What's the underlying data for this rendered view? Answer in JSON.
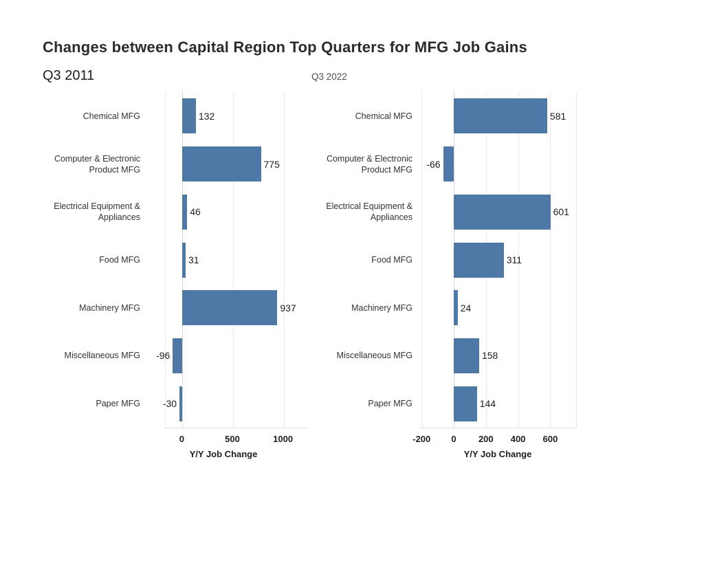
{
  "title": "Changes between Capital Region Top Quarters for MFG Job Gains",
  "colors": {
    "bar": "#4e79a7",
    "gridline": "#e9e9e9",
    "zero_line": "#bdbdbd",
    "axis_line": "#dcdcdc",
    "title_text": "#2b2b2b",
    "value_text": "#1e1e1e",
    "category_text": "#333333"
  },
  "chart_data": [
    {
      "type": "bar",
      "orientation": "horizontal",
      "title": "Q3 2011",
      "xlabel": "Y/Y Job Change",
      "categories": [
        "Chemical MFG",
        "Computer & Electronic Product MFG",
        "Electrical Equipment & Appliances",
        "Food MFG",
        "Machinery MFG",
        "Miscellaneous MFG",
        "Paper MFG"
      ],
      "values": [
        132,
        775,
        46,
        31,
        937,
        -96,
        -30
      ],
      "xlim": [
        -166,
        1247
      ],
      "xticks": [
        0,
        500,
        1000
      ],
      "grid": true,
      "zero_line_style": "dotted",
      "legend": "none",
      "value_labels_shown": true
    },
    {
      "type": "bar",
      "orientation": "horizontal",
      "title": "Q3 2022",
      "xlabel": "Y/Y Job Change",
      "categories": [
        "Chemical MFG",
        "Computer & Electronic Product MFG",
        "Electrical Equipment & Appliances",
        "Food MFG",
        "Machinery MFG",
        "Miscellaneous MFG",
        "Paper MFG"
      ],
      "values": [
        581,
        -66,
        601,
        311,
        24,
        158,
        144
      ],
      "xlim": [
        -214,
        761
      ],
      "xticks": [
        -200,
        0,
        200,
        400,
        600
      ],
      "grid": true,
      "zero_line_style": "dotted",
      "legend": "none",
      "value_labels_shown": true
    }
  ]
}
